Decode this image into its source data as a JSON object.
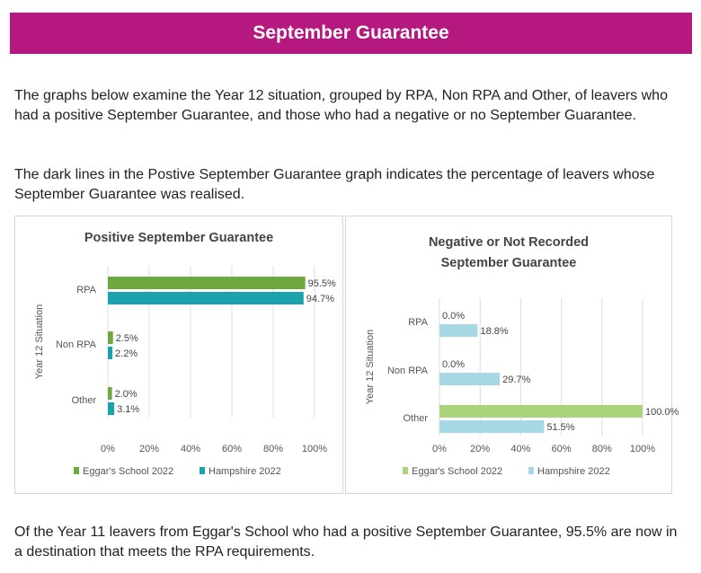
{
  "header": {
    "title": "September Guarantee"
  },
  "intro": {
    "p1": "The graphs below examine the Year 12 situation, grouped by RPA, Non RPA and Other, of leavers who had a positive September Guarantee, and those who had a negative or no September Guarantee.",
    "p2": "The dark lines in the Postive September Guarantee graph indicates the percentage of leavers whose September Guarantee was realised."
  },
  "footer": {
    "text": "Of the Year 11 leavers from Eggar's School who had a positive September Guarantee, 95.5% are now in a destination that meets the RPA requirements."
  },
  "colors": {
    "banner": "#b5187f",
    "positive_school": "#6fa83e",
    "positive_hampshire": "#1aa3ac",
    "negative_school": "#a9d47a",
    "negative_hampshire": "#a7d8e6"
  },
  "chart_data": [
    {
      "type": "bar",
      "orientation": "horizontal",
      "title": [
        "Positive September Guarantee"
      ],
      "ylabel": "Year 12 Situation",
      "xlabel": "",
      "categories": [
        "RPA",
        "Non RPA",
        "Other"
      ],
      "xlim": [
        0,
        100
      ],
      "xticks": [
        "0%",
        "20%",
        "40%",
        "60%",
        "80%",
        "100%"
      ],
      "grid": true,
      "legend_position": "bottom",
      "series": [
        {
          "name": "Eggar's School 2022",
          "values": [
            95.5,
            2.5,
            2.0
          ],
          "labels": [
            "95.5%",
            "2.5%",
            "2.0%"
          ],
          "color": "#6fa83e"
        },
        {
          "name": "Hampshire 2022",
          "values": [
            94.7,
            2.2,
            3.1
          ],
          "labels": [
            "94.7%",
            "2.2%",
            "3.1%"
          ],
          "color": "#1aa3ac"
        }
      ]
    },
    {
      "type": "bar",
      "orientation": "horizontal",
      "title": [
        "Negative or Not Recorded",
        "September Guarantee"
      ],
      "ylabel": "Year 12 Situation",
      "xlabel": "",
      "categories": [
        "RPA",
        "Non RPA",
        "Other"
      ],
      "xlim": [
        0,
        100
      ],
      "xticks": [
        "0%",
        "20%",
        "40%",
        "60%",
        "80%",
        "100%"
      ],
      "grid": true,
      "legend_position": "bottom",
      "series": [
        {
          "name": "Eggar's School 2022",
          "values": [
            0.0,
            0.0,
            100.0
          ],
          "labels": [
            "0.0%",
            "0.0%",
            "100.0%"
          ],
          "color": "#a9d47a"
        },
        {
          "name": "Hampshire 2022",
          "values": [
            18.8,
            29.7,
            51.5
          ],
          "labels": [
            "18.8%",
            "29.7%",
            "51.5%"
          ],
          "color": "#a7d8e6"
        }
      ]
    }
  ]
}
